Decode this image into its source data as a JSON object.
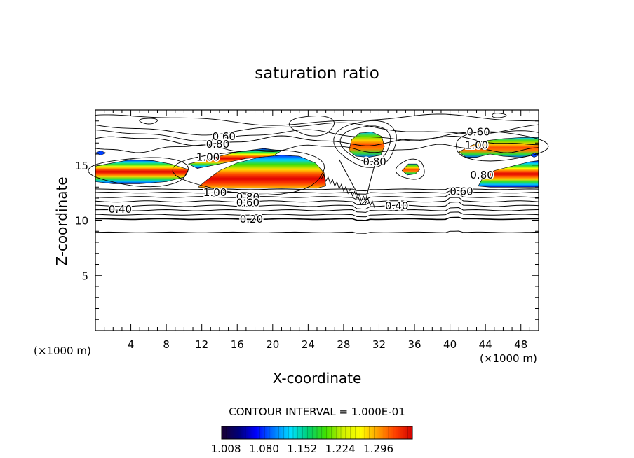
{
  "chart_data": {
    "type": "contour",
    "title": "saturation ratio",
    "xlabel": "X-coordinate",
    "ylabel": "Z-coordinate",
    "x_units_left": "(×1000 m)",
    "x_units_right": "(×1000 m)",
    "xlim": [
      0,
      50
    ],
    "ylim": [
      0,
      20
    ],
    "x_ticks": [
      "4",
      "8",
      "12",
      "16",
      "20",
      "24",
      "28",
      "32",
      "36",
      "40",
      "44",
      "48"
    ],
    "y_ticks": [
      "5",
      "10",
      "15"
    ],
    "contour_interval_text": "CONTOUR INTERVAL = 1.000E-01",
    "contour_labels": [
      {
        "text": "0.60",
        "x": 14.5,
        "y": 17.6
      },
      {
        "text": "0.80",
        "x": 13.8,
        "y": 16.9
      },
      {
        "text": "1.00",
        "x": 12.7,
        "y": 15.7
      },
      {
        "text": "1.00",
        "x": 13.5,
        "y": 12.5
      },
      {
        "text": "0.80",
        "x": 17.2,
        "y": 12.1
      },
      {
        "text": "0.60",
        "x": 17.2,
        "y": 11.6
      },
      {
        "text": "0.40",
        "x": 2.8,
        "y": 11.0
      },
      {
        "text": "0.20",
        "x": 17.6,
        "y": 10.1
      },
      {
        "text": "0.80",
        "x": 31.5,
        "y": 15.3
      },
      {
        "text": "0.40",
        "x": 34.0,
        "y": 11.3
      },
      {
        "text": "0.60",
        "x": 43.2,
        "y": 18.0
      },
      {
        "text": "1.00",
        "x": 43.0,
        "y": 16.8
      },
      {
        "text": "0.80",
        "x": 43.6,
        "y": 14.1
      },
      {
        "text": "0.60",
        "x": 41.3,
        "y": 12.6
      }
    ],
    "colorbar": {
      "min": 1.0,
      "max": 1.36,
      "labels": [
        "1.008",
        "1.080",
        "1.152",
        "1.224",
        "1.296"
      ],
      "colors": [
        "#1a0030",
        "#00007a",
        "#0000ff",
        "#0078ff",
        "#00e0ff",
        "#00d070",
        "#40e000",
        "#d0f000",
        "#ffff00",
        "#ffa000",
        "#ff4000",
        "#d00000"
      ]
    },
    "filled_regions": [
      {
        "name": "left-band",
        "x_range": [
          0,
          10.5
        ],
        "z_range": [
          13.2,
          15.3
        ]
      },
      {
        "name": "upper-left-band",
        "x_range": [
          10,
          21
        ],
        "z_range": [
          15.2,
          16.5
        ]
      },
      {
        "name": "central-lens",
        "x_range": [
          11.5,
          26
        ],
        "z_range": [
          12.8,
          15.8
        ]
      },
      {
        "name": "central-top-cell",
        "x_range": [
          28.5,
          32.5
        ],
        "z_range": [
          16.0,
          18.0
        ]
      },
      {
        "name": "small-cell",
        "x_range": [
          34.5,
          36.5
        ],
        "z_range": [
          14.2,
          15.2
        ]
      },
      {
        "name": "right-upper-cell",
        "x_range": [
          41,
          50
        ],
        "z_range": [
          15.6,
          17.5
        ]
      },
      {
        "name": "right-lower-band",
        "x_range": [
          43,
          50
        ],
        "z_range": [
          13.0,
          15.3
        ]
      }
    ]
  }
}
